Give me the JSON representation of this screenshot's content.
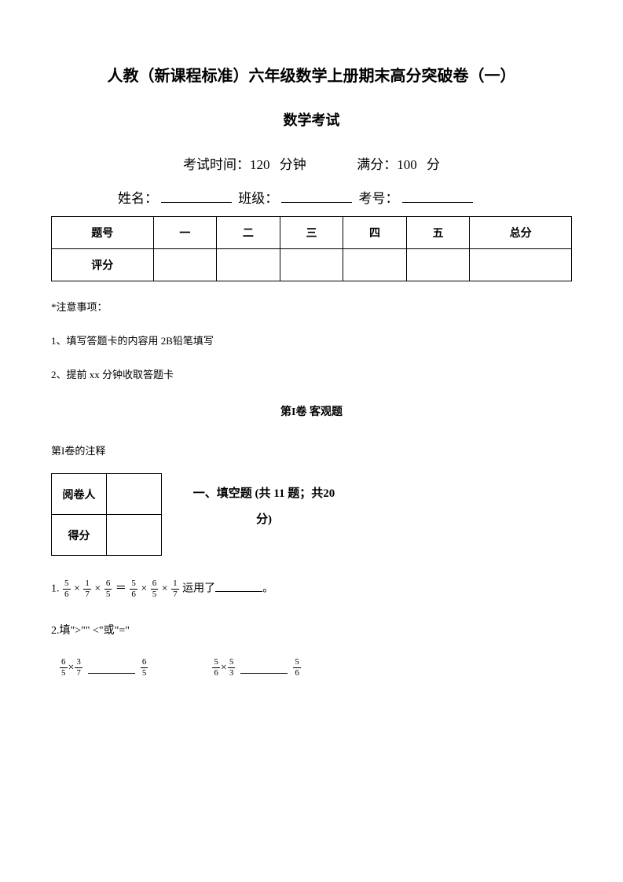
{
  "title_main": "人教（新课程标准）六年级数学上册期末高分突破卷（一）",
  "title_sub": "数学考试",
  "exam_info": {
    "time_label": "考试时间：",
    "time_value": "120 分钟",
    "score_label": "满分：",
    "score_value": "100 分"
  },
  "student_info": {
    "name_label": "姓名：",
    "class_label": "班级：",
    "id_label": "考号："
  },
  "score_table": {
    "headers": [
      "题号",
      "一",
      "二",
      "三",
      "四",
      "五",
      "总分"
    ],
    "row_label": "评分"
  },
  "notice": {
    "label": "*注意事项：",
    "items": [
      "1、填写答题卡的内容用 2B铅笔填写",
      "2、提前 xx 分钟收取答题卡"
    ]
  },
  "section1": {
    "title": "第I卷 客观题",
    "note": "第I卷的注释"
  },
  "grader": {
    "row1": "阅卷人",
    "row2": "得分"
  },
  "fill_blank_heading": "一、填空题  (共 11 题；共20 分)",
  "questions": {
    "q1": {
      "prefix": "1.",
      "f1": {
        "n": "5",
        "d": "6"
      },
      "op1": "×",
      "f2": {
        "n": "1",
        "d": "7"
      },
      "op2": "×",
      "f3": {
        "n": "6",
        "d": "5"
      },
      "eq": "＝",
      "f4": {
        "n": "5",
        "d": "6"
      },
      "op3": "×",
      "f5": {
        "n": "6",
        "d": "5"
      },
      "op4": "×",
      "f6": {
        "n": "1",
        "d": "7"
      },
      "suffix": " 运用了",
      "end": "。"
    },
    "q2": {
      "prefix": "2.填\">\"\" <\"或\"=\"",
      "c1": {
        "f1": {
          "n": "6",
          "d": "5"
        },
        "op": " × ",
        "f2": {
          "n": "3",
          "d": "7"
        },
        "f3": {
          "n": "6",
          "d": "5"
        }
      },
      "c2": {
        "f1": {
          "n": "5",
          "d": "6"
        },
        "op": " × ",
        "f2": {
          "n": "5",
          "d": "3"
        },
        "f3": {
          "n": "5",
          "d": "6"
        }
      }
    }
  }
}
